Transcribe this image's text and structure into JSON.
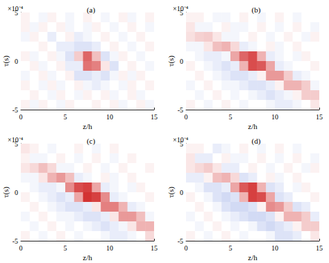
{
  "chart_data": [
    {
      "type": "heatmap",
      "title": "(a)",
      "x_label": "z/h",
      "y_label": "τ(s)",
      "y_scale_label": "×10⁻⁴",
      "xlim": [
        0,
        15
      ],
      "xticks": [
        0,
        5,
        10,
        15
      ],
      "ylim": [
        -5,
        5
      ],
      "yticks": [
        -5,
        0,
        5
      ],
      "zlim": [
        -1,
        1
      ],
      "x": [
        0.5,
        1.5,
        2.5,
        3.5,
        4.5,
        5.5,
        6.5,
        7.5,
        8.5,
        9.5,
        10.5,
        11.5,
        12.5,
        13.5,
        14.5
      ],
      "y": [
        4.5,
        3.5,
        2.5,
        1.5,
        0.5,
        -0.5,
        -1.5,
        -2.5,
        -3.5,
        -4.5
      ],
      "values": [
        [
          0.05,
          0,
          -0.05,
          0.05,
          0,
          -0.05,
          0,
          0.05,
          0,
          -0.05,
          0,
          0.05,
          -0.05,
          0,
          0.05
        ],
        [
          0.05,
          -0.05,
          0.05,
          0,
          0.05,
          -0.05,
          0,
          -0.05,
          0.05,
          0,
          -0.05,
          0,
          0.05,
          0,
          -0.05
        ],
        [
          -0.05,
          0.05,
          0,
          -0.1,
          0,
          0.05,
          -0.1,
          -0.05,
          0,
          0.05,
          0,
          -0.05,
          0,
          0.05,
          0
        ],
        [
          0,
          0,
          0.05,
          0,
          -0.1,
          -0.1,
          -0.15,
          -0.15,
          -0.1,
          0,
          0.05,
          0,
          -0.05,
          0,
          0.05
        ],
        [
          0.05,
          -0.05,
          0,
          0.05,
          -0.05,
          -0.15,
          0.2,
          0.6,
          0.25,
          -0.15,
          -0.05,
          0.05,
          0,
          -0.05,
          0
        ],
        [
          0,
          0.05,
          -0.05,
          0,
          0.05,
          -0.1,
          -0.1,
          0.55,
          0.5,
          0.1,
          -0.15,
          0,
          0.05,
          0,
          -0.05
        ],
        [
          -0.05,
          0,
          0.05,
          -0.05,
          0,
          0.05,
          -0.15,
          -0.15,
          -0.1,
          -0.15,
          -0.05,
          0.05,
          -0.05,
          0.05,
          0
        ],
        [
          0.05,
          0,
          -0.05,
          0.05,
          -0.05,
          0,
          0.05,
          -0.05,
          -0.1,
          -0.05,
          0,
          -0.05,
          0.05,
          0,
          0.05
        ],
        [
          0,
          0.05,
          0,
          -0.05,
          0.05,
          0,
          -0.05,
          0.05,
          0,
          0.05,
          -0.05,
          0,
          0.05,
          -0.05,
          0
        ],
        [
          0.05,
          -0.05,
          0.05,
          0,
          -0.05,
          0.05,
          0,
          0,
          0.05,
          0,
          0.05,
          -0.05,
          0,
          0.05,
          -0.05
        ]
      ]
    },
    {
      "type": "heatmap",
      "title": "(b)",
      "x_label": "z/h",
      "y_label": "τ(s)",
      "y_scale_label": "×10⁻⁴",
      "xlim": [
        0,
        15
      ],
      "xticks": [
        0,
        5,
        10,
        15
      ],
      "ylim": [
        -5,
        5
      ],
      "yticks": [
        -5,
        0,
        5
      ],
      "zlim": [
        -1,
        1
      ],
      "x": [
        0.5,
        1.5,
        2.5,
        3.5,
        4.5,
        5.5,
        6.5,
        7.5,
        8.5,
        9.5,
        10.5,
        11.5,
        12.5,
        13.5,
        14.5
      ],
      "y": [
        4.5,
        3.5,
        2.5,
        1.5,
        0.5,
        -0.5,
        -1.5,
        -2.5,
        -3.5,
        -4.5
      ],
      "values": [
        [
          0.05,
          0.05,
          0,
          -0.05,
          -0.05,
          0,
          0.05,
          0,
          -0.05,
          0,
          0.05,
          0,
          -0.05,
          0,
          0
        ],
        [
          0.1,
          -0.05,
          -0.05,
          0,
          0.05,
          -0.05,
          -0.05,
          0,
          0.05,
          0,
          -0.05,
          0,
          0.05,
          0,
          -0.05
        ],
        [
          0.12,
          0.18,
          0.2,
          0.1,
          -0.05,
          -0.05,
          0,
          0.05,
          0,
          -0.05,
          0,
          0.05,
          0,
          -0.05,
          0.05
        ],
        [
          -0.05,
          -0.05,
          0.1,
          0.25,
          0.3,
          0.15,
          -0.1,
          -0.05,
          0,
          0.05,
          -0.05,
          0,
          0.05,
          0,
          0
        ],
        [
          0,
          -0.05,
          -0.1,
          -0.1,
          -0.05,
          0.35,
          0.6,
          0.7,
          0.3,
          -0.1,
          -0.05,
          0,
          -0.05,
          0.05,
          0
        ],
        [
          0.05,
          0,
          -0.05,
          -0.1,
          -0.15,
          -0.1,
          0.3,
          0.7,
          0.65,
          0.35,
          -0.1,
          -0.05,
          0,
          0,
          0.05
        ],
        [
          0,
          0.05,
          0,
          -0.05,
          -0.1,
          -0.15,
          -0.15,
          -0.1,
          0.05,
          0.4,
          0.4,
          0.2,
          -0.1,
          -0.05,
          0
        ],
        [
          -0.05,
          0,
          0.05,
          0,
          -0.05,
          -0.05,
          -0.1,
          -0.15,
          -0.15,
          -0.1,
          0.05,
          0.3,
          0.3,
          0.2,
          -0.05
        ],
        [
          0,
          -0.05,
          0,
          0.05,
          0,
          -0.05,
          0,
          -0.05,
          -0.1,
          -0.15,
          -0.1,
          -0.05,
          0.05,
          0.2,
          0.2
        ],
        [
          0.05,
          0,
          -0.05,
          0,
          0.05,
          0,
          -0.05,
          0,
          0,
          -0.05,
          -0.1,
          -0.1,
          -0.05,
          0,
          0.1
        ]
      ]
    },
    {
      "type": "heatmap",
      "title": "(c)",
      "x_label": "z/h",
      "y_label": "τ(s)",
      "y_scale_label": "×10⁻⁴",
      "xlim": [
        0,
        15
      ],
      "xticks": [
        0,
        5,
        10,
        15
      ],
      "ylim": [
        -5,
        5
      ],
      "yticks": [
        -5,
        0,
        5
      ],
      "zlim": [
        -1,
        1
      ],
      "x": [
        0.5,
        1.5,
        2.5,
        3.5,
        4.5,
        5.5,
        6.5,
        7.5,
        8.5,
        9.5,
        10.5,
        11.5,
        12.5,
        13.5,
        14.5
      ],
      "y": [
        4.5,
        3.5,
        2.5,
        1.5,
        0.5,
        -0.5,
        -1.5,
        -2.5,
        -3.5,
        -4.5
      ],
      "values": [
        [
          0.1,
          0.05,
          0,
          -0.05,
          0,
          0,
          0.05,
          0,
          -0.05,
          0,
          0.05,
          0,
          0,
          0,
          0
        ],
        [
          0.05,
          -0.05,
          -0.05,
          0,
          0.05,
          0,
          -0.05,
          0,
          0.05,
          0,
          -0.05,
          0,
          0.05,
          0,
          0
        ],
        [
          0.1,
          0.15,
          0.25,
          0.15,
          -0.05,
          -0.05,
          0,
          0.05,
          0,
          -0.05,
          0,
          0.05,
          0,
          0,
          0.05
        ],
        [
          -0.05,
          -0.05,
          0.1,
          0.3,
          0.4,
          0.25,
          -0.1,
          -0.05,
          0,
          0.05,
          -0.05,
          0,
          0.05,
          0,
          0
        ],
        [
          0,
          -0.05,
          -0.1,
          -0.1,
          -0.05,
          0.45,
          0.7,
          0.75,
          0.35,
          -0.1,
          -0.05,
          0,
          -0.05,
          0.05,
          0
        ],
        [
          0.05,
          0,
          -0.05,
          -0.1,
          -0.15,
          -0.1,
          0.35,
          0.8,
          0.75,
          0.45,
          -0.1,
          -0.05,
          0,
          0,
          0.05
        ],
        [
          0,
          0.05,
          0,
          -0.05,
          -0.1,
          -0.15,
          -0.15,
          -0.1,
          0.1,
          0.5,
          0.5,
          0.3,
          -0.1,
          -0.05,
          0
        ],
        [
          -0.05,
          0,
          0.05,
          0,
          -0.05,
          -0.05,
          -0.1,
          -0.15,
          -0.15,
          -0.1,
          0.1,
          0.4,
          0.4,
          0.25,
          -0.05
        ],
        [
          0,
          -0.05,
          0,
          0.05,
          0,
          -0.05,
          0,
          -0.05,
          -0.1,
          -0.15,
          -0.1,
          -0.05,
          0.1,
          0.3,
          0.3
        ],
        [
          0.05,
          0,
          -0.05,
          0,
          0.05,
          0,
          -0.05,
          0,
          0,
          -0.05,
          -0.1,
          -0.1,
          -0.05,
          0,
          0.15
        ]
      ]
    },
    {
      "type": "heatmap",
      "title": "(d)",
      "x_label": "z/h",
      "y_label": "τ(s)",
      "y_scale_label": "×10⁻⁴",
      "xlim": [
        0,
        15
      ],
      "xticks": [
        0,
        5,
        10,
        15
      ],
      "ylim": [
        -5,
        5
      ],
      "yticks": [
        -5,
        0,
        5
      ],
      "zlim": [
        -1,
        1
      ],
      "x": [
        0.5,
        1.5,
        2.5,
        3.5,
        4.5,
        5.5,
        6.5,
        7.5,
        8.5,
        9.5,
        10.5,
        11.5,
        12.5,
        13.5,
        14.5
      ],
      "y": [
        4.5,
        3.5,
        2.5,
        1.5,
        0.5,
        -0.5,
        -1.5,
        -2.5,
        -3.5,
        -4.5
      ],
      "values": [
        [
          0.05,
          0.05,
          0,
          -0.1,
          -0.05,
          0,
          0.05,
          0,
          -0.05,
          0,
          0.05,
          0,
          -0.05,
          0,
          0
        ],
        [
          0.1,
          -0.1,
          -0.1,
          0,
          0.05,
          -0.05,
          -0.05,
          0,
          0.05,
          0,
          -0.05,
          0,
          0.05,
          0,
          -0.05
        ],
        [
          0.1,
          0.15,
          0.2,
          0.1,
          -0.1,
          -0.1,
          0,
          0.05,
          0,
          -0.05,
          0,
          0.05,
          0,
          -0.05,
          0.05
        ],
        [
          -0.1,
          -0.1,
          0.05,
          0.25,
          0.3,
          0.15,
          -0.15,
          -0.1,
          0,
          0.05,
          -0.05,
          0,
          0.05,
          0,
          0
        ],
        [
          0,
          -0.05,
          -0.15,
          -0.15,
          -0.1,
          0.35,
          0.65,
          0.75,
          0.3,
          -0.15,
          -0.1,
          0,
          -0.05,
          0.05,
          0
        ],
        [
          0.05,
          0,
          -0.05,
          -0.15,
          -0.2,
          -0.15,
          0.3,
          0.75,
          0.7,
          0.35,
          -0.15,
          -0.1,
          0,
          0,
          0.05
        ],
        [
          0,
          0.05,
          0,
          -0.05,
          -0.15,
          -0.2,
          -0.2,
          -0.15,
          0.05,
          0.45,
          0.4,
          0.2,
          -0.15,
          -0.1,
          0
        ],
        [
          -0.05,
          0,
          0.05,
          0,
          -0.05,
          -0.1,
          -0.15,
          -0.2,
          -0.2,
          -0.15,
          0.05,
          0.3,
          0.3,
          0.2,
          -0.1
        ],
        [
          0,
          -0.05,
          0,
          0.05,
          0,
          -0.05,
          0,
          -0.05,
          -0.15,
          -0.2,
          -0.15,
          -0.1,
          0.05,
          0.2,
          0.2
        ],
        [
          0.05,
          0,
          -0.05,
          0,
          0.05,
          0,
          -0.05,
          0,
          0,
          -0.05,
          -0.15,
          -0.15,
          -0.1,
          0,
          0.1
        ]
      ]
    }
  ]
}
